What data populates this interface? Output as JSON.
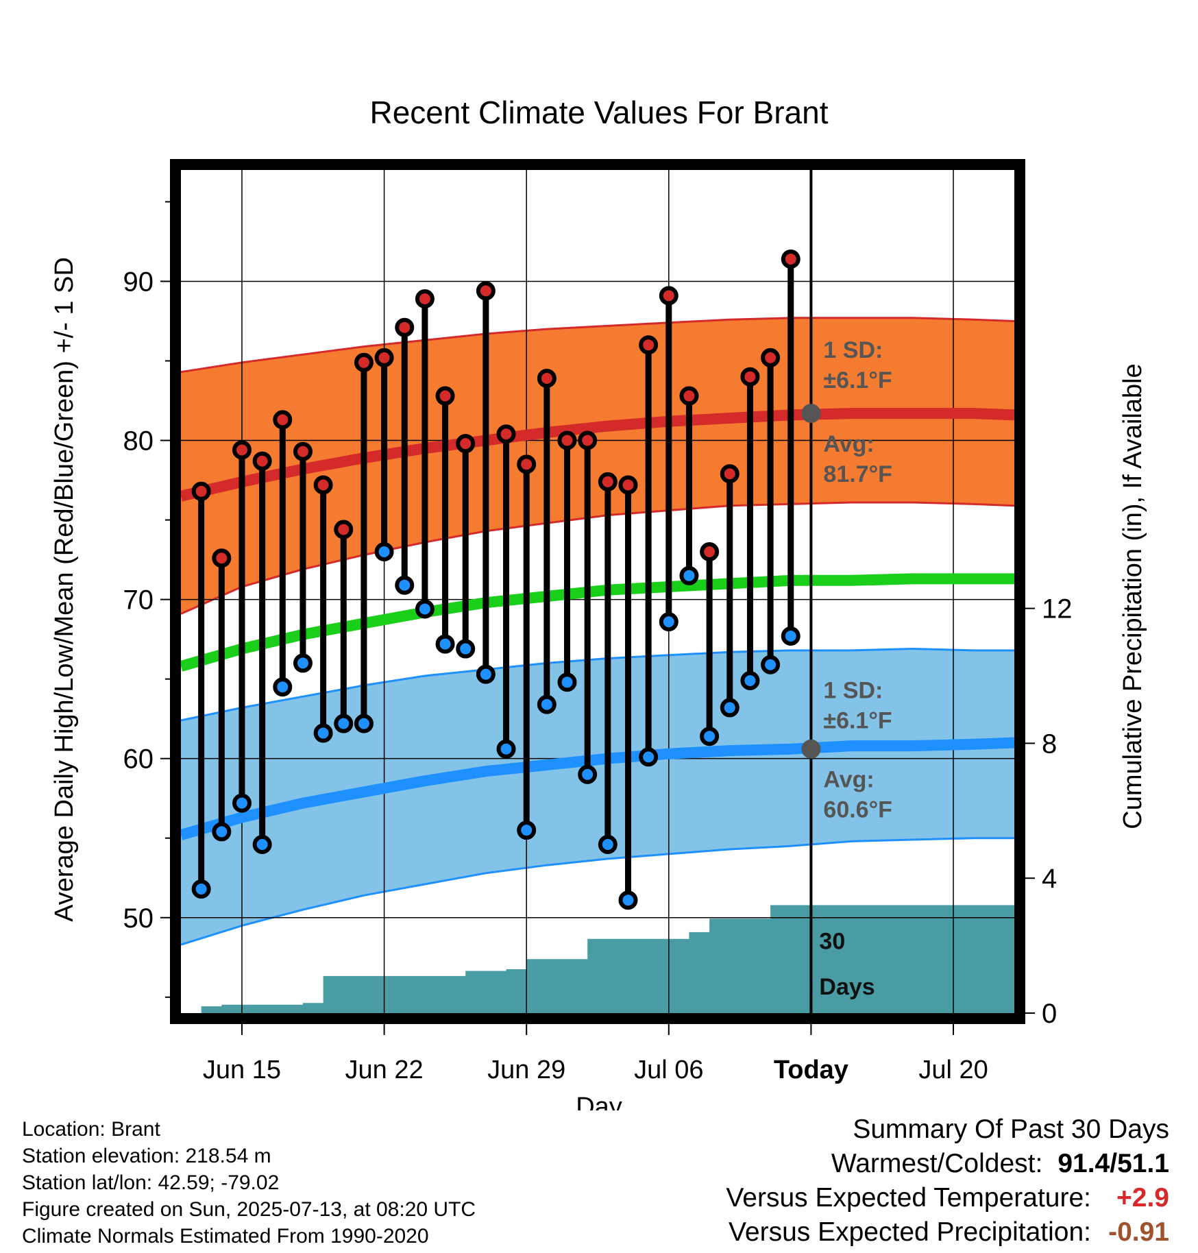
{
  "chart_data": {
    "type": "line",
    "title": "Recent Climate Values For Brant",
    "xlabel": "Day",
    "ylabel_left": "Average Daily High/Low/Mean (Red/Blue/Green) +/- 1 SD",
    "ylabel_right": "Cumulative Precipitation (in), If Available",
    "x_tick_labels": [
      "Jun 15",
      "Jun 22",
      "Jun 29",
      "Jul 06",
      "Today",
      "Jul 20"
    ],
    "x_tick_days": [
      3,
      10,
      17,
      24,
      31,
      38
    ],
    "xlim_days": [
      0,
      41
    ],
    "ylim_left": [
      44,
      97
    ],
    "yticks_left": [
      50,
      60,
      70,
      80,
      90
    ],
    "ylim_right": [
      0,
      25
    ],
    "yticks_right": [
      0,
      4,
      8,
      12
    ],
    "grid": true,
    "today_day": 31,
    "observed_days": [
      1,
      2,
      3,
      4,
      5,
      6,
      7,
      8,
      9,
      10,
      11,
      12,
      13,
      14,
      15,
      16,
      17,
      18,
      19,
      20,
      21,
      22,
      23,
      24,
      25,
      26,
      27,
      28,
      29,
      30
    ],
    "observed_high": [
      76.8,
      72.6,
      79.4,
      78.7,
      81.3,
      79.3,
      77.2,
      74.4,
      84.9,
      85.2,
      87.1,
      88.9,
      82.8,
      79.8,
      89.4,
      80.4,
      78.5,
      83.9,
      80.0,
      80.0,
      77.4,
      77.2,
      86.0,
      89.1,
      82.8,
      73.0,
      77.9,
      84.0,
      85.2,
      91.4
    ],
    "observed_low": [
      51.8,
      55.4,
      57.2,
      54.6,
      64.5,
      66.0,
      61.6,
      62.2,
      62.2,
      73.0,
      70.9,
      69.4,
      67.2,
      66.9,
      65.3,
      60.6,
      55.5,
      63.4,
      64.8,
      59.0,
      54.6,
      51.1,
      60.1,
      68.6,
      71.5,
      61.4,
      63.2,
      64.9,
      65.9,
      67.7
    ],
    "normal_days": [
      0,
      3,
      6,
      9,
      12,
      15,
      18,
      21,
      24,
      27,
      30,
      33,
      36,
      39,
      41
    ],
    "normal_high_avg": [
      76.5,
      77.4,
      78.2,
      78.9,
      79.5,
      80.0,
      80.5,
      80.9,
      81.2,
      81.4,
      81.6,
      81.7,
      81.7,
      81.7,
      81.6
    ],
    "normal_high_upper": [
      84.3,
      84.9,
      85.4,
      85.9,
      86.3,
      86.7,
      87.0,
      87.2,
      87.4,
      87.6,
      87.7,
      87.7,
      87.7,
      87.6,
      87.5
    ],
    "normal_high_lower": [
      69.1,
      70.8,
      71.9,
      72.8,
      73.6,
      74.3,
      74.8,
      75.3,
      75.6,
      75.9,
      76.0,
      76.1,
      76.1,
      76.0,
      75.9
    ],
    "normal_mean_avg": [
      65.8,
      66.9,
      67.8,
      68.5,
      69.2,
      69.8,
      70.2,
      70.6,
      70.8,
      71.0,
      71.2,
      71.2,
      71.3,
      71.3,
      71.3
    ],
    "normal_low_avg": [
      55.2,
      56.3,
      57.2,
      57.9,
      58.6,
      59.2,
      59.6,
      60.0,
      60.3,
      60.5,
      60.6,
      60.8,
      60.8,
      60.9,
      61.0
    ],
    "normal_low_upper": [
      62.4,
      63.2,
      63.9,
      64.6,
      65.2,
      65.6,
      66.0,
      66.3,
      66.5,
      66.7,
      66.8,
      66.8,
      66.9,
      66.8,
      66.8
    ],
    "normal_low_lower": [
      48.3,
      49.5,
      50.5,
      51.4,
      52.1,
      52.8,
      53.3,
      53.7,
      54.0,
      54.3,
      54.5,
      54.8,
      54.9,
      55.0,
      55.0
    ],
    "precip_days": [
      0,
      1,
      2,
      3,
      4,
      5,
      6,
      7,
      8,
      9,
      10,
      11,
      12,
      13,
      14,
      15,
      16,
      17,
      18,
      19,
      20,
      21,
      22,
      23,
      24,
      25,
      26,
      27,
      28,
      29,
      30,
      31,
      41
    ],
    "precip_cum": [
      0,
      0.2,
      0.25,
      0.25,
      0.25,
      0.25,
      0.3,
      1.1,
      1.1,
      1.1,
      1.1,
      1.1,
      1.1,
      1.1,
      1.25,
      1.25,
      1.3,
      1.6,
      1.6,
      1.6,
      2.2,
      2.2,
      2.2,
      2.2,
      2.2,
      2.4,
      2.8,
      2.8,
      2.8,
      3.2,
      3.2,
      3.2,
      3.2
    ],
    "annotations": {
      "high_sd_line1": "1 SD:",
      "high_sd_line2": "±6.1°F",
      "high_avg_line1": "Avg:",
      "high_avg_line2": "81.7°F",
      "high_avg_value": 81.7,
      "low_sd_line1": "1 SD:",
      "low_sd_line2": "±6.1°F",
      "low_avg_line1": "Avg:",
      "low_avg_line2": "60.6°F",
      "low_avg_value": 60.6,
      "precip_line1": "30",
      "precip_line2": "Days"
    },
    "colors": {
      "high_band": "#f47b30",
      "high_line": "#d42a2a",
      "mean_line": "#19cf19",
      "low_band": "#84c3e8",
      "low_line": "#1e90ff",
      "precip_fill": "#4a9ca4",
      "high_dot": "#d42a2a",
      "low_dot": "#1e90ff",
      "annotation_text": "#555555"
    }
  },
  "footer": {
    "location": "Location: Brant",
    "elevation": "Station elevation: 218.54 m",
    "latlon": "Station lat/lon: 42.59; -79.02",
    "created": "Figure created on Sun, 2025-07-13, at 08:20 UTC",
    "normals": "Climate Normals Estimated From 1990-2020"
  },
  "summary": {
    "title": "Summary Of Past 30 Days",
    "warm_cold_label": "Warmest/Coldest:",
    "warm_cold_value": "91.4/51.1",
    "temp_label": "Versus Expected Temperature:",
    "temp_value": "+2.9",
    "temp_color": "#d42a2a",
    "precip_label": "Versus Expected Precipitation:",
    "precip_value": "-0.91",
    "precip_color": "#a0522d"
  }
}
